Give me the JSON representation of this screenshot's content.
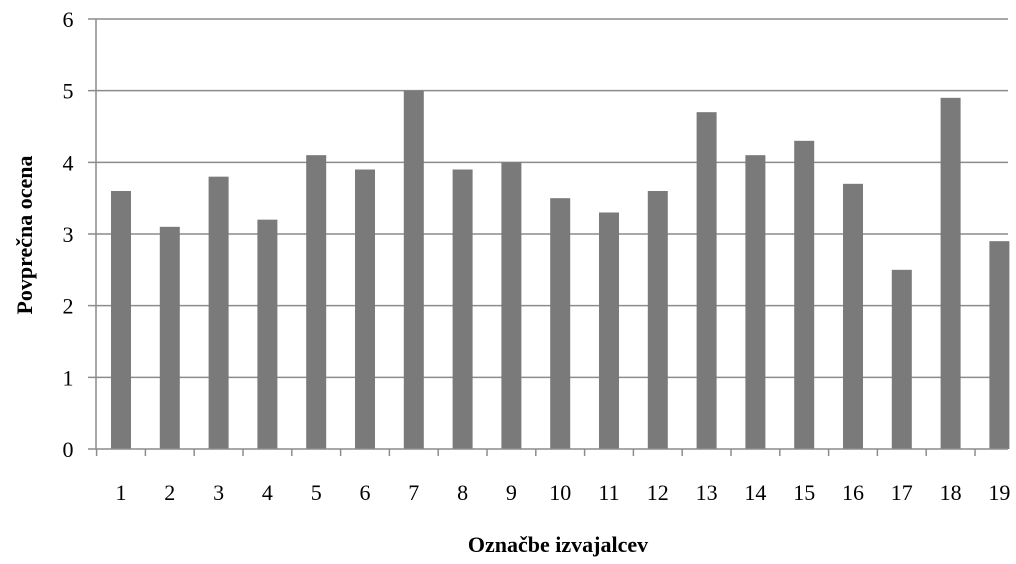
{
  "chart_data": {
    "type": "bar",
    "title": "",
    "xlabel": "Označbe izvajalcev",
    "ylabel": "Povprečna ocena",
    "categories": [
      "1",
      "2",
      "3",
      "4",
      "5",
      "6",
      "7",
      "8",
      "9",
      "10",
      "11",
      "12",
      "13",
      "14",
      "15",
      "16",
      "17",
      "18",
      "19"
    ],
    "values": [
      3.6,
      3.1,
      3.8,
      3.2,
      4.1,
      3.9,
      5.0,
      3.9,
      4.0,
      3.5,
      3.3,
      3.6,
      4.7,
      4.1,
      4.3,
      3.7,
      2.5,
      4.9,
      2.9
    ],
    "ylim": [
      0,
      6
    ],
    "yticks": [
      0,
      1,
      2,
      3,
      4,
      5,
      6
    ],
    "grid": true,
    "legend": "none",
    "bar_color": "#7a7a7a",
    "grid_color": "#8c8c8c"
  }
}
